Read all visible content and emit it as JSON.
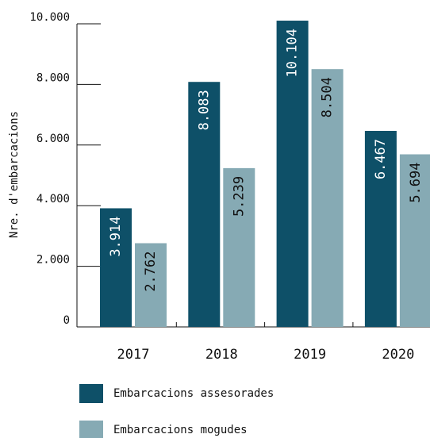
{
  "chart_data": {
    "type": "bar",
    "y_label": "Nre. d'embarcacions",
    "categories": [
      "2017",
      "2018",
      "2019",
      "2020"
    ],
    "series": [
      {
        "name": "Embarcacions assesorades",
        "color": "#0e5068",
        "values": [
          3914,
          8083,
          10104,
          6467
        ],
        "value_labels": [
          "3.914",
          "8.083",
          "10.104",
          "6.467"
        ]
      },
      {
        "name": "Embarcacions mogudes",
        "color": "#86aab4",
        "values": [
          2762,
          5239,
          8504,
          5694
        ],
        "value_labels": [
          "2.762",
          "5.239",
          "8.504",
          "5.694"
        ]
      }
    ],
    "ylim": [
      0,
      10000
    ],
    "yticks": [
      0,
      {
        "value": 2000,
        "label": "2.000"
      },
      {
        "value": 4000,
        "label": "4.000"
      },
      {
        "value": 6000,
        "label": "6.000"
      },
      {
        "value": 8000,
        "label": "8.000"
      },
      {
        "value": 10000,
        "label": "10.000"
      }
    ],
    "grid": false
  }
}
